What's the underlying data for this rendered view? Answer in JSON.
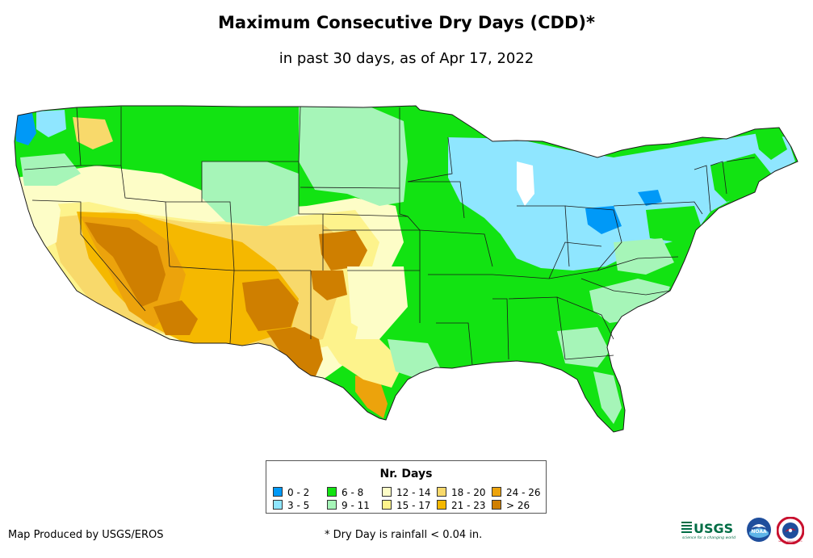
{
  "title": "Maximum Consecutive Dry Days (CDD)*",
  "subtitle": "in past 30 days, as of Apr 17, 2022",
  "legend": {
    "title": "Nr. Days",
    "items": [
      {
        "label": "0 - 2",
        "color": "#0099f7"
      },
      {
        "label": "3 - 5",
        "color": "#8fe6ff"
      },
      {
        "label": "6 - 8",
        "color": "#12e312"
      },
      {
        "label": "9 - 11",
        "color": "#a6f5b8"
      },
      {
        "label": "12 - 14",
        "color": "#fdfdc7"
      },
      {
        "label": "15 - 17",
        "color": "#fdf38c"
      },
      {
        "label": "18 - 20",
        "color": "#f8d96b"
      },
      {
        "label": "21 - 23",
        "color": "#f5b800"
      },
      {
        "label": "24 - 26",
        "color": "#eca30c"
      },
      {
        "label": "> 26",
        "color": "#cf7f00"
      }
    ]
  },
  "credit": "Map Produced by USGS/EROS",
  "footnote": "* Dry Day is rainfall < 0.04 in.",
  "logos": [
    {
      "name": "usgs-logo",
      "text": "USGS",
      "tagline": "science for a changing world"
    },
    {
      "name": "noaa-logo",
      "text": "NOAA"
    },
    {
      "name": "nws-logo",
      "text": "NATIONAL WEATHER SERVICE"
    }
  ]
}
